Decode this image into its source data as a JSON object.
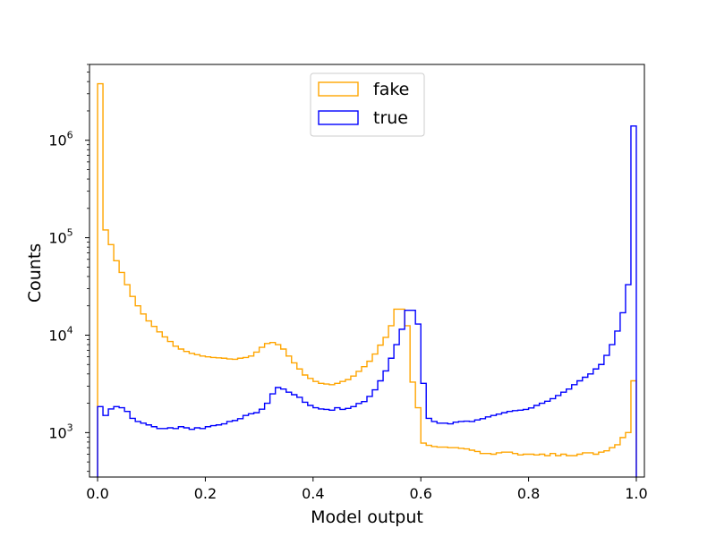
{
  "chart_data": {
    "type": "histogram",
    "xlabel": "Model output",
    "ylabel": "Counts",
    "yscale": "log",
    "xlim": [
      -0.015,
      1.015
    ],
    "ylim": [
      350,
      6000000
    ],
    "x_ticks": [
      {
        "value": 0.0,
        "label": "0.0"
      },
      {
        "value": 0.2,
        "label": "0.2"
      },
      {
        "value": 0.4,
        "label": "0.4"
      },
      {
        "value": 0.6,
        "label": "0.6"
      },
      {
        "value": 0.8,
        "label": "0.8"
      },
      {
        "value": 1.0,
        "label": "1.0"
      }
    ],
    "y_ticks": [
      {
        "value": 1000,
        "base": "10",
        "exp": "3"
      },
      {
        "value": 10000,
        "base": "10",
        "exp": "4"
      },
      {
        "value": 100000,
        "base": "10",
        "exp": "5"
      },
      {
        "value": 1000000,
        "base": "10",
        "exp": "6"
      }
    ],
    "grid": false,
    "legend_position": "top-center",
    "bin_range": [
      0,
      1
    ],
    "bins": 100,
    "series": [
      {
        "name": "fake",
        "color": "#ffa500",
        "values": [
          3800000,
          120000,
          85000,
          58000,
          44000,
          33000,
          25000,
          20000,
          16500,
          14000,
          12300,
          10800,
          9600,
          8600,
          7700,
          7200,
          6800,
          6500,
          6300,
          6100,
          6000,
          5900,
          5850,
          5800,
          5700,
          5650,
          5800,
          5900,
          6100,
          6700,
          7500,
          8200,
          8400,
          8000,
          7200,
          6100,
          5200,
          4500,
          3900,
          3600,
          3350,
          3200,
          3150,
          3100,
          3200,
          3350,
          3500,
          3800,
          4250,
          4750,
          5400,
          6400,
          7900,
          9500,
          12500,
          18500,
          18500,
          12500,
          3300,
          1800,
          780,
          740,
          720,
          710,
          710,
          700,
          700,
          690,
          680,
          660,
          640,
          610,
          610,
          600,
          620,
          630,
          630,
          610,
          590,
          600,
          600,
          590,
          600,
          580,
          610,
          580,
          600,
          580,
          580,
          600,
          620,
          620,
          600,
          630,
          650,
          700,
          750,
          890,
          1000,
          3400
        ]
      },
      {
        "name": "true",
        "color": "#0000ff",
        "values": [
          1850,
          1500,
          1750,
          1850,
          1800,
          1650,
          1400,
          1300,
          1250,
          1200,
          1150,
          1100,
          1100,
          1120,
          1100,
          1150,
          1120,
          1080,
          1120,
          1100,
          1150,
          1180,
          1200,
          1230,
          1300,
          1330,
          1390,
          1500,
          1560,
          1600,
          1740,
          2000,
          2500,
          2900,
          2800,
          2600,
          2450,
          2300,
          2050,
          1900,
          1800,
          1750,
          1730,
          1700,
          1800,
          1730,
          1770,
          1850,
          1990,
          2080,
          2350,
          2750,
          3400,
          4300,
          5800,
          8000,
          11500,
          18000,
          18000,
          13000,
          3200,
          1400,
          1300,
          1250,
          1250,
          1230,
          1280,
          1300,
          1310,
          1300,
          1350,
          1390,
          1450,
          1500,
          1550,
          1600,
          1650,
          1680,
          1700,
          1730,
          1790,
          1900,
          2000,
          2100,
          2230,
          2400,
          2600,
          2800,
          3100,
          3400,
          3700,
          4000,
          4500,
          5000,
          6200,
          8000,
          11000,
          17000,
          33000,
          1400000
        ]
      }
    ]
  }
}
